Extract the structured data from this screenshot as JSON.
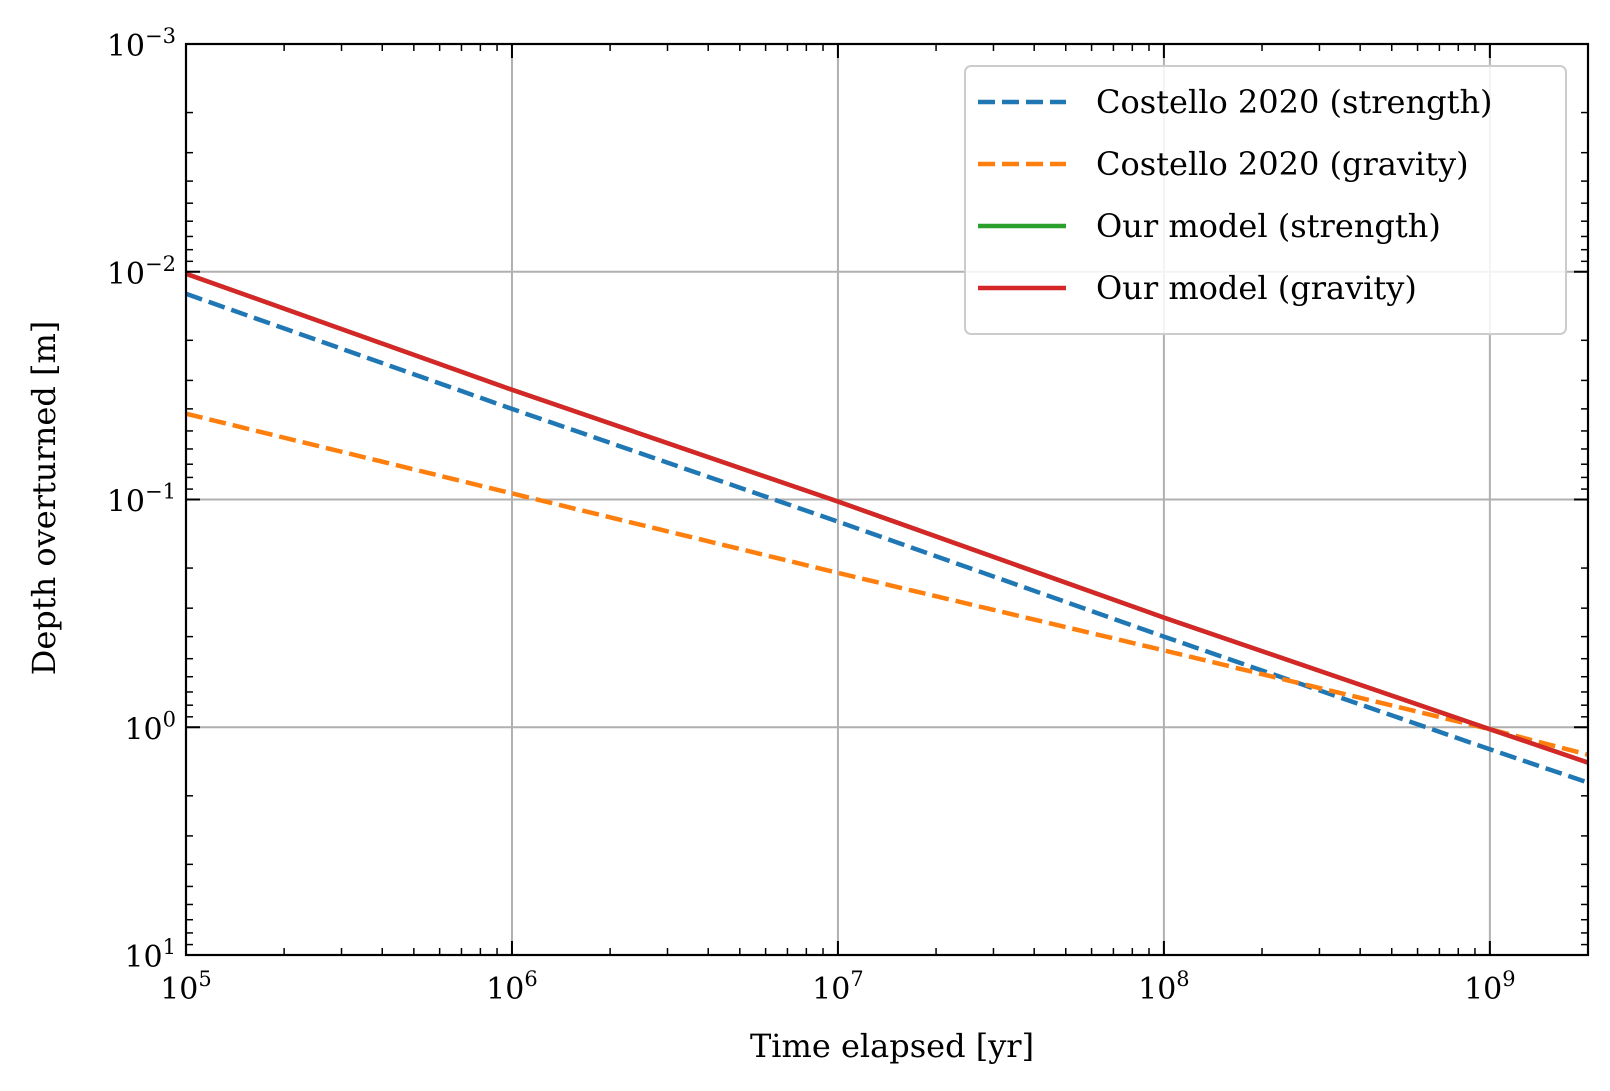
{
  "chart_data": {
    "type": "line",
    "xlabel": "Time elapsed [yr]",
    "ylabel": "Depth overturned [m]",
    "xscale": "log",
    "yscale": "log",
    "y_inverted": true,
    "xlim": [
      100000,
      2000000000
    ],
    "ylim": [
      0.001,
      10
    ],
    "grid": true,
    "legend_position": "top-right",
    "x_ticks": [
      {
        "base": "10",
        "exp": "5",
        "value": 100000
      },
      {
        "base": "10",
        "exp": "6",
        "value": 1000000
      },
      {
        "base": "10",
        "exp": "7",
        "value": 10000000
      },
      {
        "base": "10",
        "exp": "8",
        "value": 100000000
      },
      {
        "base": "10",
        "exp": "9",
        "value": 1000000000
      }
    ],
    "y_ticks": [
      {
        "base": "10",
        "exp": "−3",
        "value": 0.001
      },
      {
        "base": "10",
        "exp": "−2",
        "value": 0.01
      },
      {
        "base": "10",
        "exp": "−1",
        "value": 0.1
      },
      {
        "base": "10",
        "exp": "0",
        "value": 1
      },
      {
        "base": "10",
        "exp": "1",
        "value": 10
      }
    ],
    "series": [
      {
        "name": "Costello 2020 (strength)",
        "color": "#1f77b4",
        "style": "dashed",
        "x": [
          100000,
          1000000,
          10000000,
          100000000,
          1000000000,
          2000000000
        ],
        "y": [
          0.0125,
          0.04,
          0.125,
          0.4,
          1.25,
          1.75
        ]
      },
      {
        "name": "Costello 2020 (gravity)",
        "color": "#ff7f0e",
        "style": "dashed",
        "x": [
          100000,
          1000000,
          10000000,
          100000000,
          1000000000,
          2000000000
        ],
        "y": [
          0.042,
          0.094,
          0.21,
          0.46,
          1.02,
          1.32
        ]
      },
      {
        "name": "Our model (strength)",
        "color": "#2ca02c",
        "style": "solid",
        "x": [
          100000,
          1000000,
          10000000,
          100000000,
          1000000000,
          2000000000
        ],
        "y": [
          0.0102,
          0.033,
          0.102,
          0.33,
          1.02,
          1.43
        ]
      },
      {
        "name": "Our model (gravity)",
        "color": "#d62728",
        "style": "solid",
        "x": [
          100000,
          1000000,
          10000000,
          100000000,
          1000000000,
          2000000000
        ],
        "y": [
          0.0102,
          0.033,
          0.102,
          0.33,
          1.02,
          1.43
        ]
      }
    ]
  }
}
